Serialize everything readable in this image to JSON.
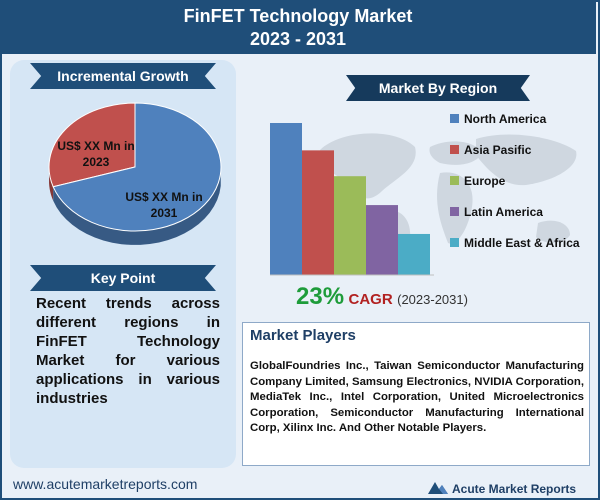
{
  "header": {
    "title_line1": "FinFET Technology Market",
    "title_line2": "2023 - 2031"
  },
  "incremental": {
    "title": "Incremental Growth",
    "label_2023": "US$ XX Mn in 2023",
    "label_2031": "US$ XX Mn in 2031"
  },
  "key_point": {
    "title": "Key Point",
    "text": "Recent trends across different regions in FinFET Technology Market for various applications in various industries"
  },
  "region": {
    "title": "Market By Region"
  },
  "cagr": {
    "value": "23%",
    "label": "CAGR",
    "years": "(2023-2031)"
  },
  "players": {
    "title": "Market Players",
    "text": "GlobalFoundries Inc., Taiwan Semiconductor Manufacturing Company Limited, Samsung Electronics, NVIDIA Corporation, MediaTek Inc., Intel Corporation, United Microelectronics Corporation, Semiconductor Manufacturing International Corp, Xilinx Inc. And Other Notable Players."
  },
  "footer": {
    "url": "www.acutemarketreports.com",
    "logo": "Acute Market Reports"
  },
  "colors": {
    "navy": "#1f4e79",
    "north_america": "#4f81bd",
    "asia_pacific": "#c0504d",
    "europe": "#9bbb59",
    "latin_america": "#8064a2",
    "middle_east_africa": "#4bacc6"
  },
  "chart_data": [
    {
      "type": "pie",
      "categories": [
        "2023",
        "2031"
      ],
      "values": [
        30,
        70
      ],
      "colors": [
        "#c0504d",
        "#4f81bd"
      ]
    },
    {
      "type": "bar",
      "categories": [
        "North America",
        "Asia Pasific",
        "Europe",
        "Latin America",
        "Middle East & Africa"
      ],
      "values": [
        100,
        82,
        65,
        46,
        27
      ],
      "colors": [
        "#4f81bd",
        "#c0504d",
        "#9bbb59",
        "#8064a2",
        "#4bacc6"
      ],
      "legend": "right",
      "grid": false
    }
  ]
}
